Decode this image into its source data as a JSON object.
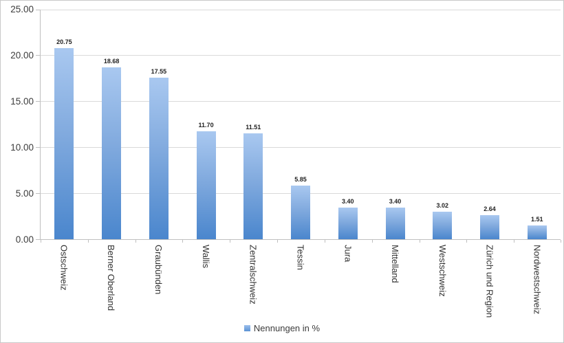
{
  "chart_data": {
    "type": "bar",
    "title": "",
    "xlabel": "",
    "ylabel": "",
    "categories": [
      "Ostschweiz",
      "Berner Oberland",
      "Graubünden",
      "Wallis",
      "Zentralschweiz",
      "Tessin",
      "Jura",
      "Mittelland",
      "Westschweiz",
      "Zürich und Region",
      "Nordwestschweiz"
    ],
    "values": [
      20.75,
      18.68,
      17.55,
      11.7,
      11.51,
      5.85,
      3.4,
      3.4,
      3.02,
      2.64,
      1.51
    ],
    "value_labels": [
      "20.75",
      "18.68",
      "17.55",
      "11.70",
      "11.51",
      "5.85",
      "3.40",
      "3.40",
      "3.02",
      "2.64",
      "1.51"
    ],
    "ylim": [
      0,
      25
    ],
    "y_tick_values": [
      0,
      5,
      10,
      15,
      20,
      25
    ],
    "y_tick_labels": [
      "0.00",
      "5.00",
      "10.00",
      "15.00",
      "20.00",
      "25.00"
    ],
    "grid": true,
    "legend": {
      "label": "Nennungen in %",
      "position": "bottom"
    },
    "colors": {
      "bar_top": "#a9c8f0",
      "bar_bottom": "#4a86cd",
      "gridline": "#d9d9d9",
      "axis": "#bfbfbf",
      "axis_text": "#3b3b3b",
      "value_text": "#1f1f1f"
    }
  }
}
